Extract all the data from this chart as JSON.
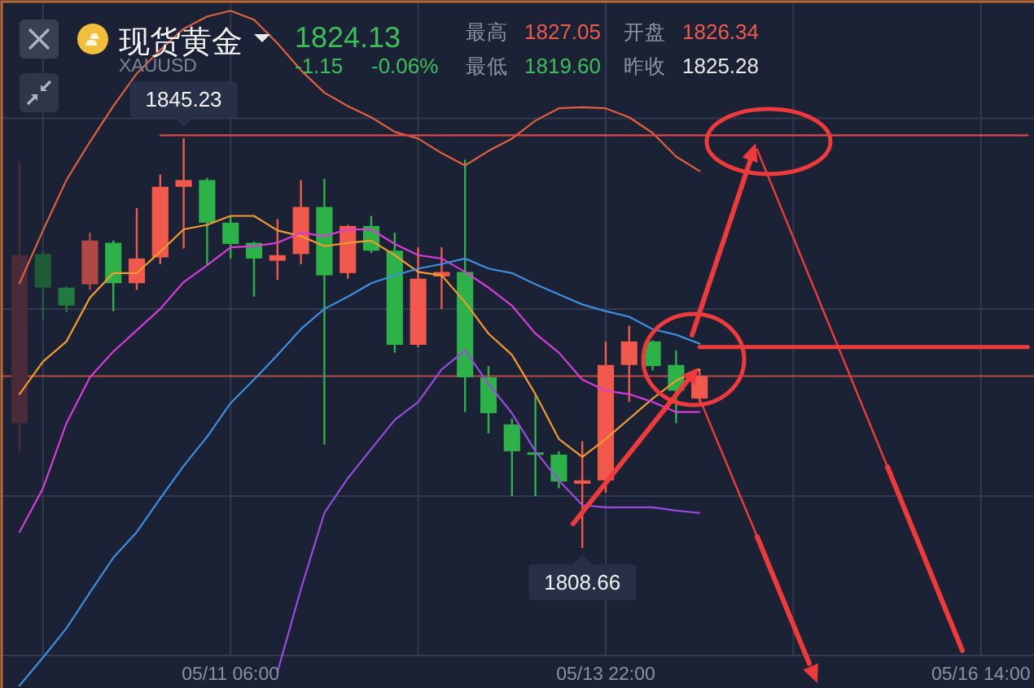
{
  "chart_data": {
    "type": "candlestick",
    "title": "现货黄金",
    "subtitle": "XAUUSD",
    "annotations": [
      "1824.13",
      "-1.15",
      "-0.06%",
      "最高",
      "1827.05",
      "开盘",
      "1826.34",
      "最低",
      "1819.60",
      "昨收",
      "1825.28",
      {
        "text": "1845.23",
        "y": 1845.23
      },
      {
        "text": "1808.66",
        "y": 1808.66
      }
    ],
    "categories": [
      null,
      null,
      null,
      null,
      null,
      null,
      null,
      null,
      null,
      "05/11 06:00",
      null,
      null,
      null,
      null,
      null,
      null,
      null,
      null,
      null,
      null,
      null,
      null,
      null,
      null,
      null,
      "05/13 22:00",
      null,
      null,
      null,
      null,
      null,
      null,
      null,
      null,
      null,
      null,
      null,
      null,
      null,
      null,
      null,
      "05/16 14:00",
      null,
      null
    ],
    "ohlc": [
      [
        1819.8,
        1843.1,
        1817.2,
        1834.8
      ],
      [
        1834.9,
        1835.1,
        1829.0,
        1831.9
      ],
      [
        1831.9,
        1832.0,
        1829.7,
        1830.3
      ],
      [
        1832.2,
        1836.8,
        1831.7,
        1836.1
      ],
      [
        1835.9,
        1836.1,
        1829.8,
        1832.3
      ],
      [
        1832.3,
        1839.0,
        1831.7,
        1834.5
      ],
      [
        1834.6,
        1842.0,
        1834.0,
        1840.9
      ],
      [
        1840.9,
        1845.23,
        1835.4,
        1841.5
      ],
      [
        1841.5,
        1841.7,
        1833.9,
        1837.7
      ],
      [
        1837.7,
        1838.3,
        1834.5,
        1835.8
      ],
      [
        1835.9,
        1836.0,
        1831.1,
        1834.5
      ],
      [
        1834.3,
        1838.0,
        1832.6,
        1834.8
      ],
      [
        1834.9,
        1841.5,
        1834.0,
        1839.1
      ],
      [
        1839.1,
        1841.6,
        1817.9,
        1833.0
      ],
      [
        1833.2,
        1837.5,
        1832.7,
        1837.4
      ],
      [
        1837.4,
        1838.3,
        1835.0,
        1835.2
      ],
      [
        1835.2,
        1836.8,
        1826.1,
        1826.8
      ],
      [
        1826.8,
        1835.5,
        1826.6,
        1832.7
      ],
      [
        1832.9,
        1835.5,
        1830.0,
        1833.3
      ],
      [
        1833.3,
        1843.3,
        1820.8,
        1823.9
      ],
      [
        1823.9,
        1824.9,
        1818.9,
        1820.7
      ],
      [
        1819.7,
        1820.2,
        1813.3,
        1817.3
      ],
      [
        1817.2,
        1822.3,
        1813.3,
        1817.0
      ],
      [
        1817.0,
        1817.3,
        1814.0,
        1814.6
      ],
      [
        1814.4,
        1818.2,
        1808.66,
        1814.7
      ],
      [
        1814.7,
        1827.1,
        1813.6,
        1825.0
      ],
      [
        1825.0,
        1828.5,
        1821.7,
        1827.1
      ],
      [
        1827.1,
        1827.2,
        1824.5,
        1824.9
      ],
      [
        1825.0,
        1826.3,
        1819.8,
        1822.7
      ],
      [
        1822.0,
        1824.6,
        1821.7,
        1824.0
      ],
      null,
      null,
      null,
      null,
      null,
      null,
      null,
      null,
      null,
      null,
      null,
      null,
      null,
      null
    ],
    "colors": [
      "#4b2b3a",
      "#1e5c38",
      "#237a3e",
      "#b04848",
      "#2db24a",
      "#f0594b",
      "#f0594b",
      "#f0594b",
      "#2db24a",
      "#2db24a",
      "#2db24a",
      "#f0594b",
      "#f0594b",
      "#2db24a",
      "#f0594b",
      "#2db24a",
      "#2db24a",
      "#f0594b",
      "#f0594b",
      "#2db24a",
      "#2db24a",
      "#2db24a",
      "#2db24a",
      "#2db24a",
      "#f0594b",
      "#f0594b",
      "#f0594b",
      "#2db24a",
      "#2db24a",
      "#f0594b",
      null,
      null,
      null,
      null,
      null,
      null,
      null,
      null,
      null,
      null,
      null,
      null,
      null,
      null
    ],
    "series": [
      {
        "type": "line",
        "color": "#e0603f",
        "values": [
          1832.3,
          1837.0,
          1841.5,
          1844.9,
          1848.1,
          1851.0,
          1853.1,
          1855.0,
          1856.1,
          1856.6,
          1855.8,
          1853.7,
          1851.3,
          1849.3,
          1848.1,
          1847.1,
          1845.8,
          1845.2,
          1843.9,
          1842.8,
          1844.1,
          1845.2,
          1846.8,
          1847.9,
          1848.0,
          1847.9,
          1847.1,
          1845.7,
          1843.6,
          1842.3,
          null,
          null,
          null,
          null,
          null,
          null,
          null,
          null,
          null,
          null,
          null,
          null,
          null,
          null
        ]
      },
      {
        "type": "line",
        "color": "#f39a2e",
        "values": [
          1822.4,
          1825.3,
          1827.1,
          1831.0,
          1833.2,
          1833.2,
          1835.1,
          1837.1,
          1837.5,
          1838.3,
          1838.3,
          1837.0,
          1836.5,
          1835.6,
          1835.9,
          1836.1,
          1834.8,
          1833.3,
          1833.0,
          1830.6,
          1827.8,
          1825.9,
          1822.4,
          1818.4,
          1816.8,
          1818.4,
          1820.2,
          1822.0,
          1823.6,
          1824.6,
          null,
          null,
          null,
          null,
          null,
          null,
          null,
          null,
          null,
          null,
          null,
          null,
          null,
          null
        ]
      },
      {
        "type": "line",
        "color": "#d93bd9",
        "values": [
          1810.1,
          1814.0,
          1819.8,
          1823.9,
          1826.2,
          1828.1,
          1830.0,
          1832.4,
          1833.9,
          1835.5,
          1835.6,
          1835.9,
          1836.8,
          1836.5,
          1837.1,
          1837.1,
          1835.8,
          1834.8,
          1834.5,
          1833.3,
          1831.9,
          1830.3,
          1827.8,
          1826.1,
          1823.7,
          1822.7,
          1822.4,
          1821.7,
          1820.8,
          1820.8,
          null,
          null,
          null,
          null,
          null,
          null,
          null,
          null,
          null,
          null,
          null,
          null,
          null,
          null
        ]
      },
      {
        "type": "line",
        "color": "#3d8ee0",
        "values": [
          1796.4,
          1798.9,
          1801.5,
          1804.7,
          1807.8,
          1810.1,
          1813.1,
          1816.0,
          1818.6,
          1821.6,
          1823.7,
          1825.9,
          1828.2,
          1830.0,
          1831.1,
          1832.3,
          1833.0,
          1833.6,
          1834.0,
          1834.5,
          1833.6,
          1833.2,
          1832.2,
          1831.3,
          1830.4,
          1829.8,
          1829.3,
          1828.2,
          1827.7,
          1826.9,
          null,
          null,
          null,
          null,
          null,
          null,
          null,
          null,
          null,
          null,
          null,
          null,
          null,
          null
        ]
      },
      {
        "type": "line",
        "color": "#9a4ae0",
        "values": [
          null,
          null,
          null,
          null,
          null,
          null,
          null,
          null,
          null,
          null,
          null,
          1797.6,
          1805.0,
          1811.8,
          1814.9,
          1817.5,
          1820.1,
          1821.7,
          1824.6,
          1826.3,
          1823.3,
          1820.7,
          1817.3,
          1814.7,
          1812.5,
          1812.3,
          1812.3,
          1812.3,
          1812.0,
          1811.8,
          null,
          null,
          null,
          null,
          null,
          null,
          null,
          null,
          null,
          null,
          null,
          null,
          null,
          null
        ]
      },
      {
        "type": "line",
        "color": "#e04848",
        "values": [
          null,
          null,
          null,
          null,
          null,
          null,
          1845.5,
          1845.5,
          1845.5,
          1845.5,
          1845.5,
          1845.5,
          1845.5,
          1845.5,
          1845.5,
          1845.5,
          1845.5,
          1845.5,
          1845.5,
          1845.5,
          1845.5,
          1845.5,
          1845.5,
          1845.5,
          1845.5,
          1845.5,
          1845.5,
          1845.5,
          1845.5,
          1845.5,
          1845.5,
          1845.5,
          1845.5,
          1845.5,
          1845.5,
          1845.5,
          1845.5,
          1845.5,
          1845.5,
          1845.5,
          1845.5,
          1845.5,
          1845.5,
          1845.5
        ]
      },
      {
        "type": "line",
        "color": "#ee3a3a",
        "values": [
          null,
          null,
          null,
          null,
          null,
          null,
          null,
          null,
          null,
          null,
          null,
          null,
          null,
          null,
          null,
          null,
          null,
          null,
          null,
          null,
          null,
          null,
          null,
          null,
          null,
          null,
          null,
          null,
          null,
          1826.6,
          1826.6,
          1826.6,
          1826.6,
          1826.6,
          1826.6,
          1826.6,
          1826.6,
          1826.6,
          1826.6,
          1826.6,
          1826.6,
          1826.6,
          1826.6,
          1826.6
        ]
      }
    ],
    "ref_lines": [
      {
        "axis": "y",
        "value": 1824.0,
        "color": "#b94848"
      }
    ],
    "yticks": [
      {
        "value": 1847,
        "label": null
      },
      {
        "value": 1830,
        "label": null
      },
      {
        "value": 1813.3,
        "label": null
      }
    ],
    "grid": true,
    "tick_labels": "x"
  }
}
